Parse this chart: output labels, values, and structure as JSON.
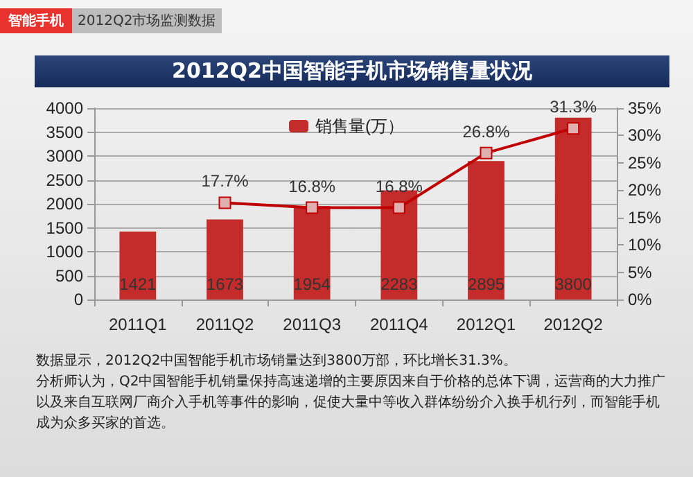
{
  "chart_data": {
    "type": "bar",
    "title": "2012Q2中国智能手机市场销售量状况",
    "annotations": [
      "智能手机",
      "2012Q2市场监测数据",
      "数据显示，2012Q2中国智能手机市场销量达到3800万部，环比增长31.3%。",
      "分析师认为，Q2中国智能手机销量保持高速递增的主要原因来自于价格的总体下调，运营商的大力推广以及来自互联网厂商介入手机等事件的影响，促使大量中等收入群体纷纷介入换手机行列，而智能手机成为众多买家的首选。"
    ],
    "categories": [
      "2011Q1",
      "2011Q2",
      "2011Q3",
      "2011Q4",
      "2012Q1",
      "2012Q2"
    ],
    "series": [
      {
        "name": "销售量(万）",
        "color": "#c42b2b",
        "values": [
          1421,
          1673,
          1954,
          2283,
          2895,
          3800
        ],
        "value_labels": [
          "1421",
          "1673",
          "1954",
          "2283",
          "2895",
          "3800"
        ]
      },
      {
        "type": "line",
        "axis": "y2",
        "color": "#c00000",
        "marker": "square",
        "values": [
          null,
          17.7,
          16.8,
          16.8,
          26.8,
          31.3
        ],
        "value_labels": [
          null,
          "17.7%",
          "16.8%",
          "16.8%",
          "26.8%",
          "31.3%"
        ]
      }
    ],
    "ylim": [
      0,
      4000
    ],
    "yticks": [
      0,
      500,
      1000,
      1500,
      2000,
      2500,
      3000,
      3500,
      4000
    ],
    "y2lim": [
      0,
      35
    ],
    "y2ticks": [
      {
        "value": 0,
        "label": "0%"
      },
      {
        "value": 5,
        "label": "5%"
      },
      {
        "value": 10,
        "label": "10%"
      },
      {
        "value": 15,
        "label": "15%"
      },
      {
        "value": 20,
        "label": "20%"
      },
      {
        "value": 25,
        "label": "25%"
      },
      {
        "value": 30,
        "label": "30%"
      },
      {
        "value": 35,
        "label": "35%"
      }
    ],
    "grid": "y",
    "legend": "top"
  }
}
